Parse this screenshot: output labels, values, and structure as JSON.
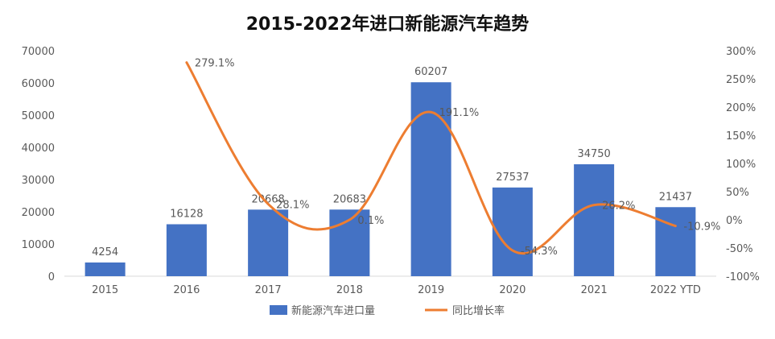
{
  "chart_data": {
    "type": "bar",
    "title": "2015-2022年进口新能源汽车趋势",
    "categories": [
      "2015",
      "2016",
      "2017",
      "2018",
      "2019",
      "2020",
      "2021",
      "2022 YTD"
    ],
    "series": [
      {
        "name": "新能源汽车进口量",
        "type": "bar",
        "axis": "left",
        "values": [
          4254,
          16128,
          20668,
          20683,
          60207,
          27537,
          34750,
          21437
        ],
        "labels": [
          "4254",
          "16128",
          "20668",
          "20683",
          "60207",
          "27537",
          "34750",
          "21437"
        ],
        "color": "#4472C4"
      },
      {
        "name": "同比增长率",
        "type": "line",
        "axis": "right",
        "values": [
          null,
          279.1,
          28.1,
          0.1,
          191.1,
          -54.3,
          26.2,
          -10.9
        ],
        "labels": [
          "",
          "279.1%",
          "28.1%",
          "0.1%",
          "191.1%",
          "-54.3%",
          "26.2%",
          "-10.9%"
        ],
        "color": "#ED7D31"
      }
    ],
    "y_left": {
      "lim": [
        0,
        70000
      ],
      "ticks": [
        "0",
        "10000",
        "20000",
        "30000",
        "40000",
        "50000",
        "60000",
        "70000"
      ]
    },
    "y_right": {
      "lim": [
        -100,
        300
      ],
      "ticks": [
        "-100%",
        "-50%",
        "0%",
        "50%",
        "100%",
        "150%",
        "200%",
        "250%",
        "300%"
      ]
    },
    "grid": false,
    "legend": "bottom-center"
  }
}
